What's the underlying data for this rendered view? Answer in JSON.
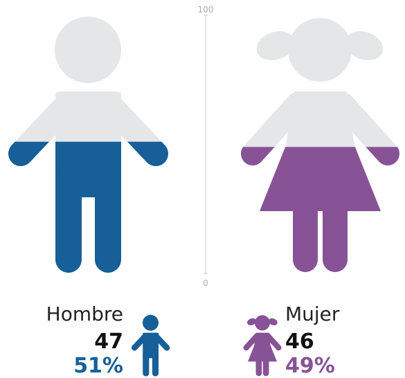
{
  "chart_data": {
    "type": "pictogram",
    "categories": [
      "Hombre",
      "Mujer"
    ],
    "values": [
      47,
      46
    ],
    "shares": [
      51,
      49
    ],
    "share_labels": [
      "51%",
      "49%"
    ],
    "colors": [
      "#175f99",
      "#875396"
    ],
    "empty_color": "#e5e6e7",
    "ylim": [
      0,
      100
    ],
    "yticks": [
      0,
      100
    ]
  }
}
